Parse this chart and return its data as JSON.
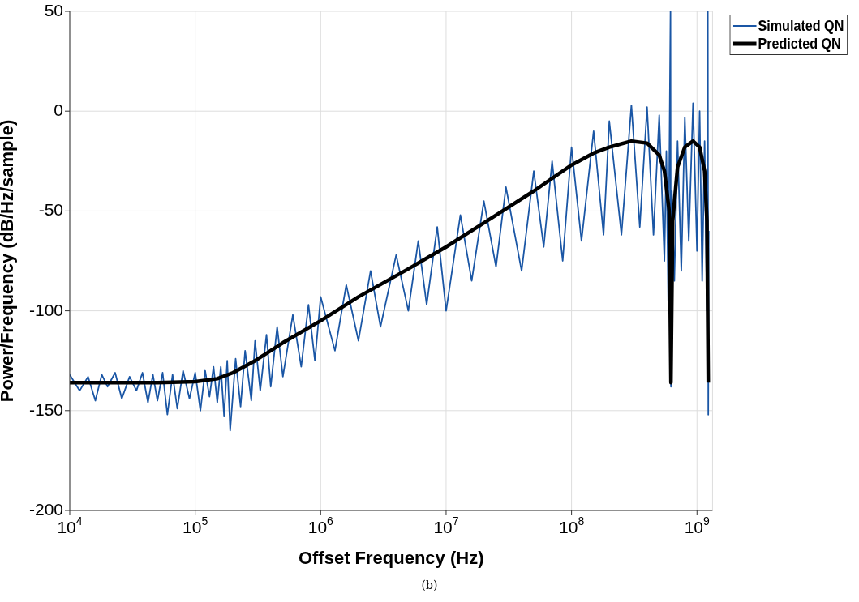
{
  "chart_data": {
    "type": "line",
    "xlabel": "Offset Frequency (Hz)",
    "ylabel": "Power/Frequency (dB/Hz/sample)",
    "xlim": [
      10000,
      1330000000
    ],
    "ylim": [
      -200,
      50
    ],
    "xticks": [
      {
        "value": 10000,
        "label": "10$^{4}$"
      },
      {
        "value": 100000,
        "label": "10$^{5}$"
      },
      {
        "value": 1000000,
        "label": "10$^{6}$"
      },
      {
        "value": 10000000,
        "label": "10$^{7}$"
      },
      {
        "value": 100000000,
        "label": "10$^{8}$"
      },
      {
        "value": 1000000000,
        "label": "10$^{9}$"
      }
    ],
    "yticks": [
      -200,
      -150,
      -100,
      -50,
      0,
      50
    ],
    "log": "x",
    "grid": true,
    "legend": "top right",
    "series": [
      {
        "name": "Simulated QN",
        "color": "#1a56a5",
        "x": [
          10000,
          12000,
          14000,
          16000,
          18000,
          20000,
          23000,
          26000,
          30000,
          34000,
          38000,
          42000,
          46000,
          50000,
          55000,
          60000,
          66000,
          72000,
          80000,
          90000,
          100000,
          110000,
          120000,
          130000,
          140000,
          150000,
          160000,
          170000,
          180000,
          190000,
          210000,
          230000,
          250000,
          280000,
          300000,
          330000,
          370000,
          400000,
          450000,
          500000,
          600000,
          700000,
          800000,
          900000,
          1000000,
          1300000,
          1600000,
          2000000,
          2500000,
          3000000,
          4000000,
          5000000,
          6000000,
          7000000,
          8500000,
          10000000,
          13000000,
          16000000,
          20000000,
          25000000,
          30000000,
          40000000,
          50000000,
          60000000,
          70000000,
          85000000,
          100000000,
          120000000,
          150000000,
          180000000,
          200000000,
          250000000,
          300000000,
          350000000,
          400000000,
          450000000,
          500000000,
          550000000,
          570000000,
          590000000,
          615000000,
          620000000,
          630000000,
          660000000,
          700000000,
          750000000,
          800000000,
          860000000,
          930000000,
          1000000000,
          1050000000,
          1100000000,
          1150000000,
          1200000000,
          1220000000,
          1230000000,
          1240000000
        ],
        "values": [
          -132,
          -140,
          -133,
          -145,
          -132,
          -138,
          -131,
          -144,
          -133,
          -140,
          -131,
          -146,
          -132,
          -145,
          -131,
          -152,
          -132,
          -149,
          -130,
          -144,
          -131,
          -150,
          -130,
          -143,
          -128,
          -146,
          -128,
          -153,
          -125,
          -160,
          -124,
          -148,
          -120,
          -145,
          -115,
          -140,
          -112,
          -138,
          -108,
          -133,
          -102,
          -128,
          -97,
          -125,
          -93,
          -120,
          -87,
          -115,
          -80,
          -108,
          -72,
          -100,
          -65,
          -97,
          -58,
          -100,
          -52,
          -85,
          -45,
          -78,
          -38,
          -80,
          -30,
          -68,
          -25,
          -75,
          -18,
          -65,
          -10,
          -62,
          -5,
          -62,
          3,
          -58,
          2,
          -62,
          -2,
          -75,
          -20,
          -95,
          50,
          -138,
          -40,
          -85,
          -15,
          -80,
          -3,
          -65,
          4,
          -70,
          0,
          -85,
          -15,
          -100,
          50,
          -152,
          -60
        ]
      },
      {
        "name": "Predicted QN",
        "color": "#000000",
        "x": [
          10000,
          50000,
          100000,
          150000,
          200000,
          300000,
          500000,
          1000000,
          2000000,
          5000000,
          10000000,
          20000000,
          50000000,
          100000000,
          150000000,
          200000000,
          300000000,
          400000000,
          500000000,
          550000000,
          600000000,
          620000000,
          640000000,
          700000000,
          800000000,
          930000000,
          1050000000,
          1150000000,
          1200000000,
          1230000000
        ],
        "values": [
          -136,
          -136,
          -135.5,
          -134,
          -131,
          -125,
          -116,
          -105,
          -93,
          -79,
          -68,
          -56,
          -40,
          -27,
          -21,
          -18,
          -15,
          -16,
          -22,
          -30,
          -50,
          -136,
          -55,
          -28,
          -18,
          -15,
          -18,
          -30,
          -55,
          -136
        ]
      }
    ],
    "annotations": [
      "(b)"
    ]
  }
}
